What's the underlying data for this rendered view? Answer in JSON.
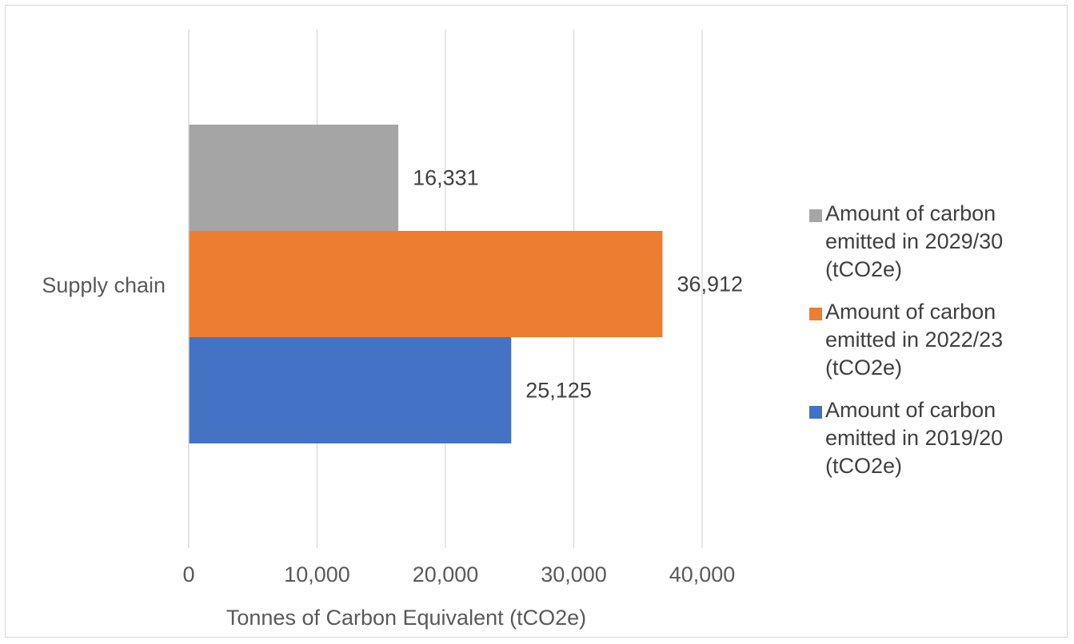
{
  "chart_data": {
    "type": "bar",
    "orientation": "horizontal",
    "categories": [
      "Supply chain"
    ],
    "series": [
      {
        "name": "Amount of carbon emitted in 2029/30 (tCO2e)",
        "values": [
          16331
        ],
        "label": "16,331",
        "color": "#a5a5a5"
      },
      {
        "name": "Amount of carbon emitted in 2022/23 (tCO2e)",
        "values": [
          36912
        ],
        "label": "36,912",
        "color": "#ed7d31"
      },
      {
        "name": "Amount of carbon emitted in 2019/20 (tCO2e)",
        "values": [
          25125
        ],
        "label": "25,125",
        "color": "#4472c4"
      }
    ],
    "xlabel": "Tonnes of Carbon Equivalent (tCO2e)",
    "ylabel": "",
    "xlim": [
      0,
      40000
    ],
    "xticks": [
      0,
      10000,
      20000,
      30000,
      40000
    ],
    "xtick_labels": [
      "0",
      "10,000",
      "20,000",
      "30,000",
      "40,000"
    ],
    "grid": "vertical",
    "legend_position": "right"
  }
}
